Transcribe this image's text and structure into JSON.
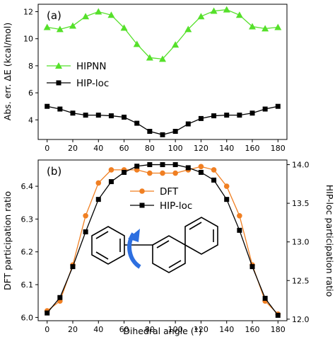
{
  "chart_data": [
    {
      "type": "line",
      "panel_label": "(a)",
      "xlabel": "",
      "ylabel": "Abs. err. ΔE (kcal/mol)",
      "xlim": [
        -7,
        187
      ],
      "ylim": [
        2.55,
        12.55
      ],
      "x": [
        0,
        10,
        20,
        30,
        40,
        50,
        60,
        70,
        80,
        90,
        100,
        110,
        120,
        130,
        140,
        150,
        160,
        170,
        180
      ],
      "x_ticks": [
        0,
        20,
        40,
        60,
        80,
        100,
        120,
        140,
        160,
        180
      ],
      "y_ticks": [
        4,
        6,
        8,
        10,
        12
      ],
      "legend_position": "center-left",
      "series": [
        {
          "name": "HIPNN",
          "marker": "triangle",
          "color": "#55e02a",
          "values": [
            10.85,
            10.7,
            10.95,
            11.65,
            12.0,
            11.75,
            10.8,
            9.6,
            8.6,
            8.5,
            9.55,
            10.7,
            11.65,
            12.05,
            12.15,
            11.75,
            10.9,
            10.75,
            10.85
          ]
        },
        {
          "name": "HIP-loc",
          "marker": "square",
          "color": "#000000",
          "values": [
            5.0,
            4.8,
            4.5,
            4.35,
            4.35,
            4.3,
            4.2,
            3.75,
            3.15,
            2.9,
            3.15,
            3.7,
            4.1,
            4.3,
            4.35,
            4.35,
            4.5,
            4.8,
            5.0
          ]
        }
      ]
    },
    {
      "type": "line",
      "panel_label": "(b)",
      "xlabel": "Dihedral angle (°)",
      "ylabel": "DFT participation ratio",
      "y2label": "HIP-loc participation ratio",
      "xlim": [
        -7,
        187
      ],
      "ylim": [
        5.99,
        6.48
      ],
      "y2lim": [
        11.98,
        14.06
      ],
      "x": [
        0,
        10,
        20,
        30,
        40,
        50,
        60,
        70,
        80,
        90,
        100,
        110,
        120,
        130,
        140,
        150,
        160,
        170,
        180
      ],
      "x_ticks": [
        0,
        20,
        40,
        60,
        80,
        100,
        120,
        140,
        160,
        180
      ],
      "y_ticks": [
        6.0,
        6.1,
        6.2,
        6.3,
        6.4
      ],
      "y2_ticks": [
        12.0,
        12.5,
        13.0,
        13.5,
        14.0
      ],
      "y_tick_labels": [
        "6.0",
        "6.1",
        "6.2",
        "6.3",
        "6.4"
      ],
      "y2_tick_labels": [
        "12.0",
        "12.5",
        "13.0",
        "13.5",
        "14.0"
      ],
      "legend_position": "upper-center",
      "series": [
        {
          "name": "DFT",
          "marker": "circle",
          "color": "#f07f22",
          "axis": "left",
          "values": [
            6.02,
            6.05,
            6.16,
            6.31,
            6.41,
            6.45,
            6.45,
            6.45,
            6.44,
            6.44,
            6.44,
            6.45,
            6.46,
            6.45,
            6.4,
            6.31,
            6.16,
            6.05,
            6.01
          ]
        },
        {
          "name": "HIP-loc",
          "marker": "square",
          "color": "#000000",
          "axis": "right",
          "values": [
            12.08,
            12.28,
            12.68,
            13.13,
            13.55,
            13.78,
            13.9,
            13.98,
            14.0,
            14.0,
            14.0,
            13.96,
            13.9,
            13.8,
            13.55,
            13.15,
            12.68,
            12.27,
            12.05
          ]
        }
      ]
    }
  ]
}
